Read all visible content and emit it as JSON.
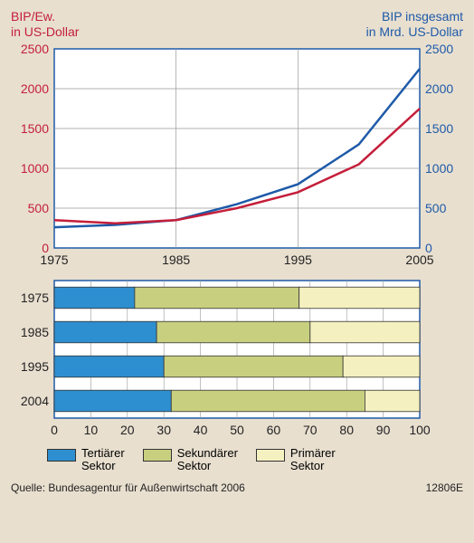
{
  "background_color": "#e8dfcf",
  "line_chart": {
    "type": "line",
    "left_axis_label": "BIP/Ew.\nin US-Dollar",
    "right_axis_label": "BIP insgesamt\nin Mrd. US-Dollar",
    "left_color": "#c41e3a",
    "right_color": "#1e5aa8",
    "plot_bg": "#ffffff",
    "plot_border": "#1e5aa8",
    "grid_color": "#999999",
    "x_years": [
      1975,
      1985,
      1995,
      2005
    ],
    "x_labels": [
      "1975",
      "1985",
      "1995",
      "2005"
    ],
    "y_ticks": [
      0,
      500,
      1000,
      1500,
      2000,
      2500
    ],
    "y_range": [
      0,
      2500
    ],
    "series_red": {
      "color": "#c41e3a",
      "width": 2.5,
      "points": [
        {
          "x": 1975,
          "y": 350
        },
        {
          "x": 1980,
          "y": 310
        },
        {
          "x": 1985,
          "y": 350
        },
        {
          "x": 1990,
          "y": 500
        },
        {
          "x": 1995,
          "y": 700
        },
        {
          "x": 2000,
          "y": 1050
        },
        {
          "x": 2005,
          "y": 1750
        }
      ]
    },
    "series_blue": {
      "color": "#1e5aa8",
      "width": 2.5,
      "points": [
        {
          "x": 1975,
          "y": 260
        },
        {
          "x": 1980,
          "y": 290
        },
        {
          "x": 1985,
          "y": 350
        },
        {
          "x": 1990,
          "y": 550
        },
        {
          "x": 1995,
          "y": 800
        },
        {
          "x": 2000,
          "y": 1300
        },
        {
          "x": 2005,
          "y": 2250
        }
      ]
    }
  },
  "bar_chart": {
    "type": "stacked-bar-horizontal",
    "plot_bg": "#ffffff",
    "plot_border": "#1e5aa8",
    "grid_color": "#999999",
    "x_range": [
      0,
      100
    ],
    "x_ticks": [
      0,
      10,
      20,
      30,
      40,
      50,
      60,
      70,
      80,
      90,
      100
    ],
    "rows": [
      {
        "year": "1975",
        "tertiary": 22,
        "secondary": 45,
        "primary": 33
      },
      {
        "year": "1985",
        "tertiary": 28,
        "secondary": 42,
        "primary": 30
      },
      {
        "year": "1995",
        "tertiary": 30,
        "secondary": 49,
        "primary": 21
      },
      {
        "year": "2004",
        "tertiary": 32,
        "secondary": 53,
        "primary": 15
      }
    ],
    "colors": {
      "tertiary": "#2e8fd0",
      "secondary": "#c8d080",
      "primary": "#f5f0c0"
    },
    "bar_border": "#333333"
  },
  "legend": {
    "items": [
      {
        "key": "tertiary",
        "label": "Tertiärer\nSektor",
        "color": "#2e8fd0"
      },
      {
        "key": "secondary",
        "label": "Sekundärer\nSektor",
        "color": "#c8d080"
      },
      {
        "key": "primary",
        "label": "Primärer\nSektor",
        "color": "#f5f0c0"
      }
    ]
  },
  "source_text": "Quelle: Bundesagentur für Außenwirtschaft 2006",
  "figure_id": "12806E",
  "tick_fontsize": 14,
  "label_fontsize": 14
}
